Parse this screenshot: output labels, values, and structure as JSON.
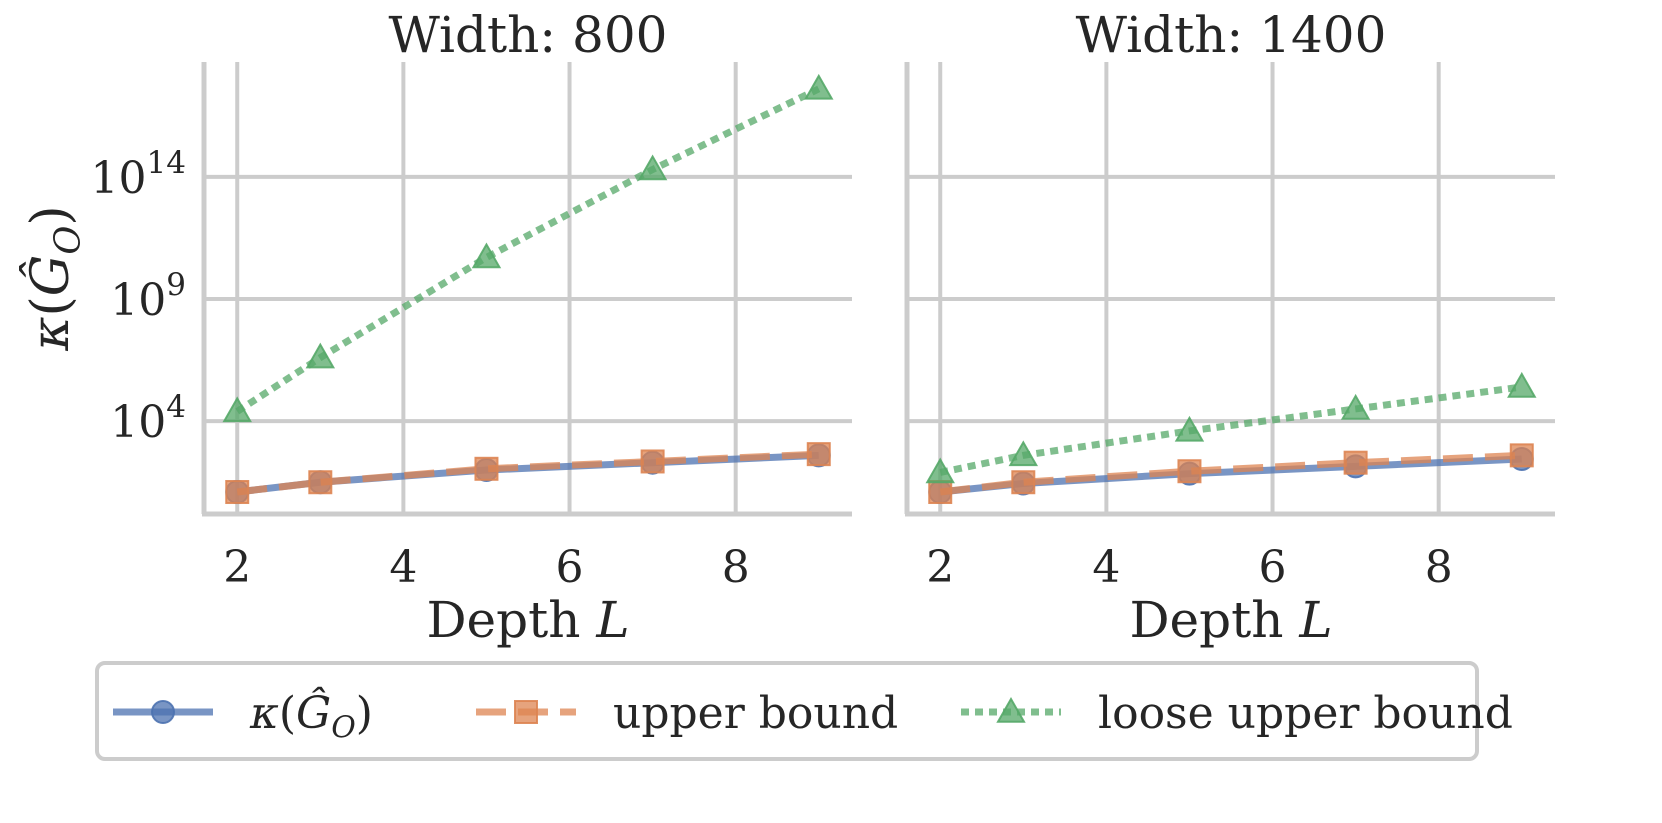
{
  "chart_data": [
    {
      "type": "line",
      "title": "Width: 800",
      "xlabel": "Depth",
      "xlabel_var": "L",
      "ylabel": "κ(Ĝ_O)",
      "yscale": "log",
      "xlim": [
        1.6,
        9.4
      ],
      "ylim_log10": [
        0.2,
        18.7
      ],
      "xticks": [
        "2",
        "4",
        "6",
        "8"
      ],
      "yticks": [
        {
          "base": "10",
          "exp": "4"
        },
        {
          "base": "10",
          "exp": "9"
        },
        {
          "base": "10",
          "exp": "14"
        }
      ],
      "grid": true,
      "x": [
        2,
        3,
        5,
        7,
        9
      ],
      "series": [
        {
          "name": "κ(Ĝ_O)",
          "log10_values": [
            1.1,
            1.5,
            2.0,
            2.3,
            2.6
          ]
        },
        {
          "name": "upper bound",
          "log10_values": [
            1.1,
            1.5,
            2.05,
            2.35,
            2.65
          ]
        },
        {
          "name": "loose upper bound",
          "log10_values": [
            4.4,
            6.6,
            10.7,
            14.3,
            17.6
          ]
        }
      ]
    },
    {
      "type": "line",
      "title": "Width: 1400",
      "xlabel": "Depth",
      "xlabel_var": "L",
      "yscale": "log",
      "xlim": [
        1.6,
        9.4
      ],
      "ylim_log10": [
        0.2,
        18.7
      ],
      "xticks": [
        "2",
        "4",
        "6",
        "8"
      ],
      "yticks": [],
      "grid": true,
      "x": [
        2,
        3,
        5,
        7,
        9
      ],
      "series": [
        {
          "name": "κ(Ĝ_O)",
          "log10_values": [
            1.1,
            1.45,
            1.85,
            2.15,
            2.45
          ]
        },
        {
          "name": "upper bound",
          "log10_values": [
            1.1,
            1.5,
            1.95,
            2.3,
            2.6
          ]
        },
        {
          "name": "loose upper bound",
          "log10_values": [
            1.9,
            2.6,
            3.6,
            4.5,
            5.4
          ]
        }
      ]
    }
  ],
  "legend": {
    "placement": "bottom-center",
    "items": [
      {
        "label": "κ(Ĝ_O)",
        "color": "#4C72B0",
        "marker": "circle",
        "linestyle": "solid"
      },
      {
        "label": "upper bound",
        "color": "#DD8452",
        "marker": "square",
        "linestyle": "dashed"
      },
      {
        "label": "loose upper bound",
        "color": "#55A868",
        "marker": "triangle",
        "linestyle": "dotted"
      }
    ]
  },
  "colors": {
    "kappa": "#4C72B0",
    "upper": "#DD8452",
    "loose": "#55A868",
    "grid": "#cccccc",
    "text": "#262626"
  }
}
